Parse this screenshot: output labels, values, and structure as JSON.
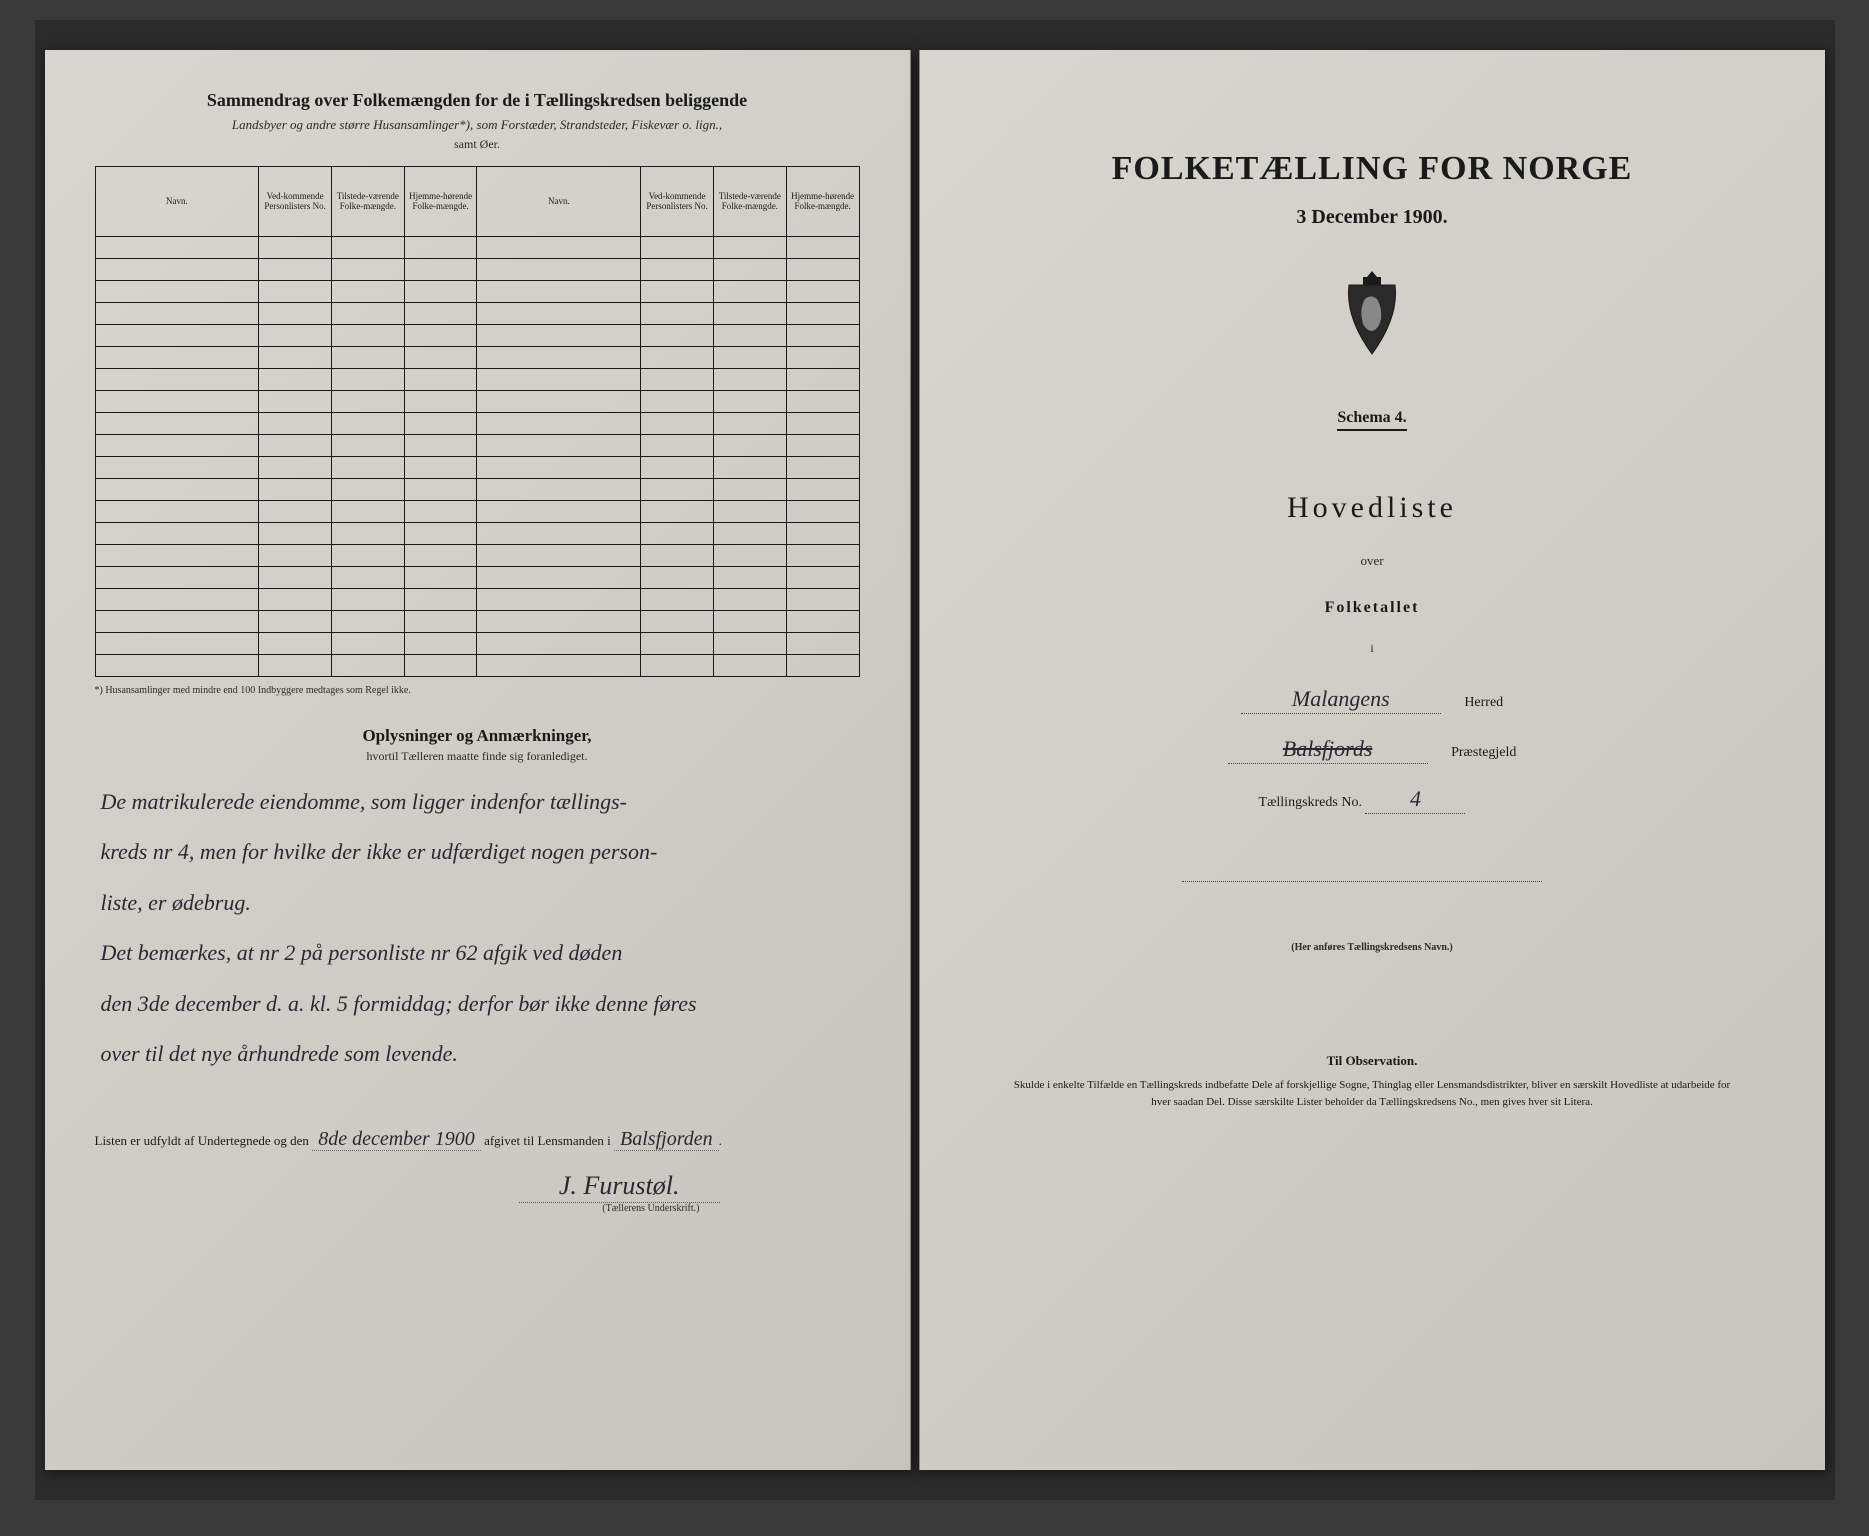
{
  "left": {
    "title": "Sammendrag over Folkemængden for de i Tællingskredsen beliggende",
    "subtitle": "Landsbyer og andre større Husansamlinger*), som Forstæder, Strandsteder, Fiskevær o. lign.,",
    "subtitle2": "samt Øer.",
    "columns": {
      "navn": "Navn.",
      "vedk": "Ved-kommende Personlisters No.",
      "tilst": "Tilstede-værende Folke-mængde.",
      "hjem": "Hjemme-hørende Folke-mængde."
    },
    "footnote": "*) Husansamlinger med mindre end 100 Indbyggere medtages som Regel ikke.",
    "section_title": "Oplysninger og Anmærkninger,",
    "section_sub": "hvortil Tælleren maatte finde sig foranlediget.",
    "notes_lines": [
      "De matrikulerede eiendomme, som ligger indenfor tællings-",
      "kreds nr 4, men for hvilke der ikke er udfærdiget nogen person-",
      "liste, er ødebrug.",
      "Det bemærkes, at nr 2 på personliste nr 62 afgik ved døden",
      "den 3de december d. a. kl. 5 formiddag; derfor bør ikke denne føres",
      "over til det nye århundrede som levende."
    ],
    "list_prefix": "Listen er udfyldt af Undertegnede og den",
    "list_date": "8de december 1900",
    "list_mid": "afgivet til Lensmanden i",
    "list_place": "Balsfjorden",
    "signature": "J. Furustøl.",
    "sign_caption": "(Tællerens Underskrift.)"
  },
  "right": {
    "title": "FOLKETÆLLING FOR NORGE",
    "date": "3 December 1900.",
    "schema": "Schema 4.",
    "hovedliste": "Hovedliste",
    "over": "over",
    "folketallet": "Folketallet",
    "i": "i",
    "herred_value": "Malangens",
    "herred_label": "Herred",
    "praest_value": "Balsfjords",
    "praest_label": "Præstegjeld",
    "kreds_label": "Tællingskreds No.",
    "kreds_value": "4",
    "note": "(Her anføres Tællingskredsens Navn.)",
    "obs_title": "Til Observation.",
    "obs_body": "Skulde i enkelte Tilfælde en Tællingskreds indbefatte Dele af forskjellige Sogne, Thinglag eller Lensmandsdistrikter, bliver en særskilt Hovedliste at udarbeide for hver saadan Del. Disse særskilte Lister beholder da Tællingskredsens No., men gives hver sit Litera."
  },
  "style": {
    "page_bg": "#cfcdc6",
    "ink": "#1a1a1a",
    "handwriting_color": "#2a2832"
  }
}
